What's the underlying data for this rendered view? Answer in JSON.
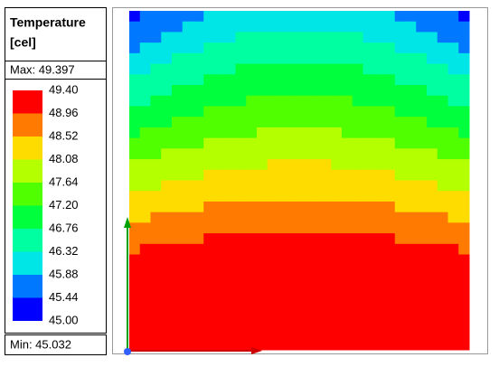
{
  "legend": {
    "title": [
      "Temperature",
      "[cel]"
    ],
    "max": "Max: 49.397",
    "min": "Min: 45.032",
    "levels": [
      "49.40",
      "48.96",
      "48.52",
      "48.08",
      "47.64",
      "47.20",
      "46.76",
      "46.32",
      "45.88",
      "45.44",
      "45.00"
    ],
    "colors": [
      "#ff0000",
      "#ff7a00",
      "#ffdc00",
      "#b4ff00",
      "#50ff00",
      "#00ff3c",
      "#00ffa0",
      "#00e6e6",
      "#0078ff",
      "#0000ff"
    ]
  }
}
